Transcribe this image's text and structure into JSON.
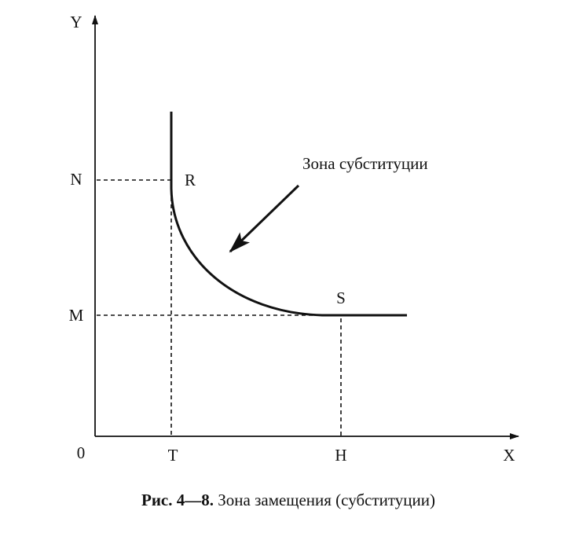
{
  "axes": {
    "y_label": "Y",
    "x_label": "X",
    "origin": "0"
  },
  "y_marks": [
    "N",
    "M"
  ],
  "x_marks": [
    "T",
    "H"
  ],
  "points": [
    "R",
    "S"
  ],
  "annotation": "Зона субституции",
  "caption": {
    "label": "Рис. 4—8.",
    "text": "Зона замещения (субституции)"
  }
}
